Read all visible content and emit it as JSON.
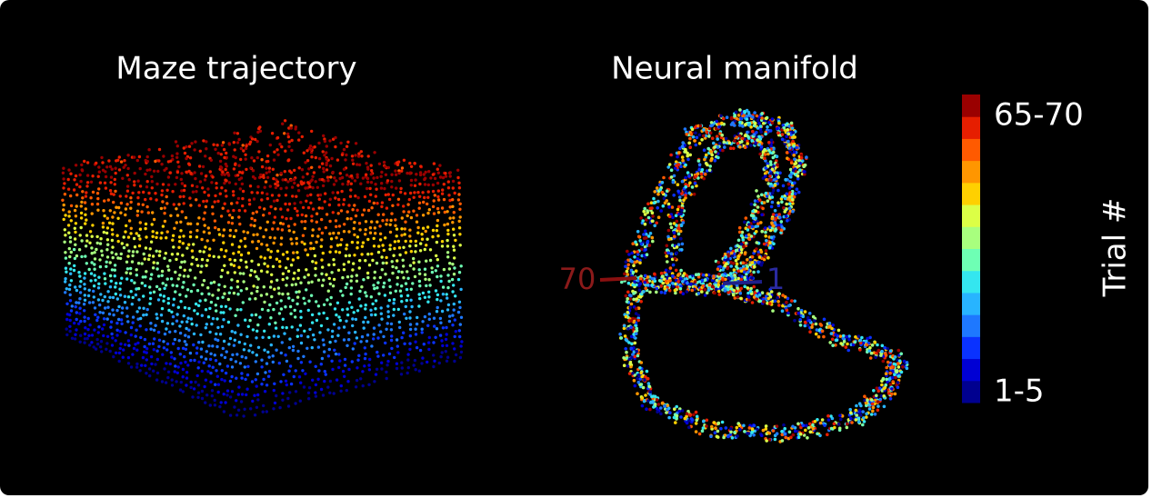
{
  "panels": [
    {
      "title": "Maze trajectory"
    },
    {
      "title": "Neural manifold",
      "start_label": "70",
      "end_label": "1"
    }
  ],
  "colorbar": {
    "title": "Trial #",
    "top_label": "65-70",
    "bottom_label": "1-5",
    "colors": [
      "#00008f",
      "#0000d4",
      "#0a32ff",
      "#1e78ff",
      "#28b4ff",
      "#34e6ef",
      "#6effb4",
      "#a8ff7e",
      "#dcff46",
      "#ffd000",
      "#ff9600",
      "#ff5a00",
      "#e61e00",
      "#9a0000"
    ]
  }
}
